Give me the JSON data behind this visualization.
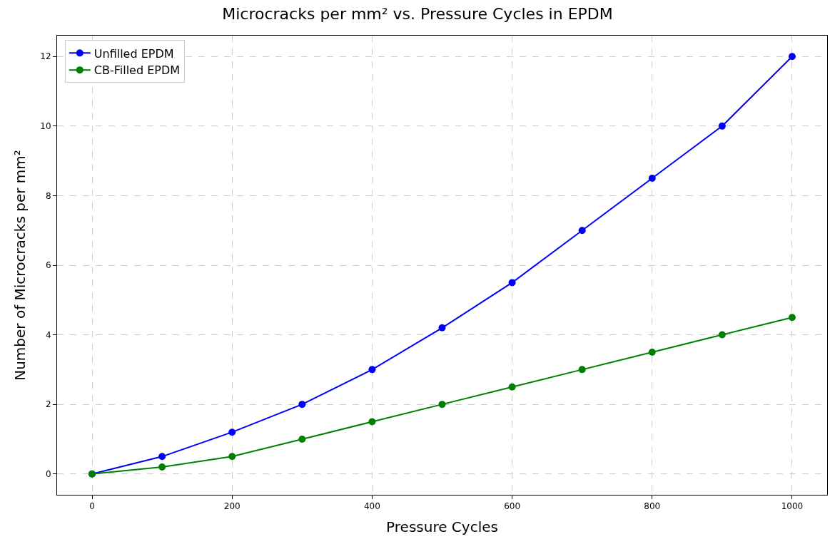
{
  "chart_data": {
    "type": "line",
    "title": "Microcracks per mm² vs. Pressure Cycles in EPDM",
    "xlabel": "Pressure Cycles",
    "ylabel": "Number of Microcracks per mm²",
    "x": [
      0,
      100,
      200,
      300,
      400,
      500,
      600,
      700,
      800,
      900,
      1000
    ],
    "series": [
      {
        "name": "Unfilled EPDM",
        "color": "#0000ff",
        "values": [
          0,
          0.5,
          1.2,
          2,
          3,
          4.2,
          5.5,
          7,
          8.5,
          10,
          12
        ]
      },
      {
        "name": "CB-Filled EPDM",
        "color": "#008000",
        "values": [
          0,
          0.2,
          0.5,
          1,
          1.5,
          2,
          2.5,
          3,
          3.5,
          4,
          4.5
        ]
      }
    ],
    "xlim": [
      -50,
      1050
    ],
    "xticks": [
      0,
      200,
      400,
      600,
      800,
      1000
    ],
    "ylim": [
      -0.6,
      12.6
    ],
    "yticks": [
      0,
      2,
      4,
      6,
      8,
      10,
      12
    ],
    "grid": true,
    "legend": "top left",
    "marker": "circle",
    "line_style": "solid"
  }
}
